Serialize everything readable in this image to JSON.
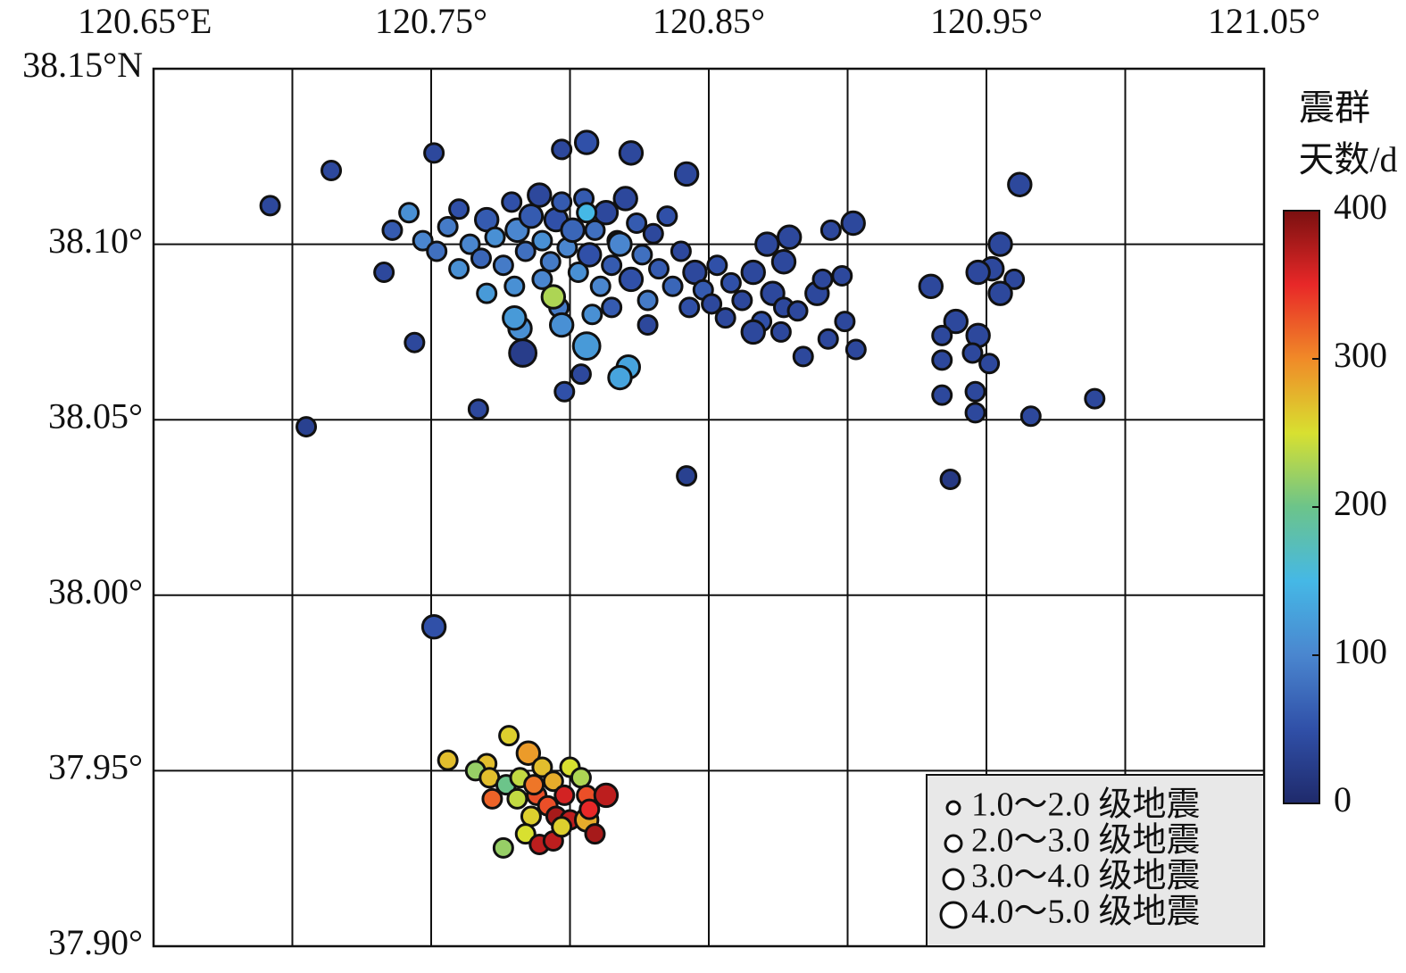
{
  "chart_data": {
    "type": "scatter",
    "xlim": [
      120.65,
      121.05
    ],
    "ylim": [
      37.9,
      38.15
    ],
    "xticks": [
      {
        "value": 120.65,
        "label": "120.65°E"
      },
      {
        "value": 120.75,
        "label": "120.75°"
      },
      {
        "value": 120.85,
        "label": "120.85°"
      },
      {
        "value": 120.95,
        "label": "120.95°"
      },
      {
        "value": 121.05,
        "label": "121.05°"
      }
    ],
    "xminor": [
      120.7,
      120.8,
      120.9,
      121.0
    ],
    "yticks": [
      {
        "value": 38.15,
        "label": "38.15°N"
      },
      {
        "value": 38.1,
        "label": "38.10°"
      },
      {
        "value": 38.05,
        "label": "38.05°"
      },
      {
        "value": 38.0,
        "label": "38.00°"
      },
      {
        "value": 37.95,
        "label": "37.95°"
      },
      {
        "value": 37.9,
        "label": "37.90°"
      }
    ],
    "grid": true,
    "colorbar": {
      "title": [
        "震群",
        "天数/d"
      ],
      "lim": [
        0,
        400
      ],
      "ticks": [
        0,
        100,
        200,
        300,
        400
      ],
      "colormap": [
        "#1f2a6b",
        "#3050a8",
        "#4a86cf",
        "#45b8e6",
        "#6cc48a",
        "#d8e030",
        "#f08a28",
        "#e82828",
        "#7a1010"
      ]
    },
    "legend": [
      "1.0～2.0 级地震",
      "2.0～3.0 级地震",
      "3.0～4.0 级地震",
      "4.0～5.0 级地震"
    ],
    "legend_position": "lower right",
    "points": [
      [
        120.692,
        38.111,
        2.5,
        40
      ],
      [
        120.705,
        38.048,
        2.5,
        30
      ],
      [
        120.714,
        38.121,
        2.5,
        40
      ],
      [
        120.733,
        38.092,
        2.5,
        40
      ],
      [
        120.744,
        38.072,
        2.5,
        40
      ],
      [
        120.751,
        38.126,
        2.5,
        40
      ],
      [
        120.751,
        37.991,
        3.5,
        50
      ],
      [
        120.767,
        38.053,
        2.5,
        40
      ],
      [
        120.797,
        38.127,
        2.5,
        40
      ],
      [
        120.806,
        38.129,
        3.5,
        50
      ],
      [
        120.822,
        38.126,
        3.5,
        40
      ],
      [
        120.842,
        38.12,
        3.5,
        40
      ],
      [
        120.842,
        38.034,
        2.5,
        30
      ],
      [
        120.804,
        38.063,
        2.5,
        40
      ],
      [
        120.798,
        38.058,
        2.5,
        50
      ],
      [
        120.742,
        38.109,
        2.5,
        110
      ],
      [
        120.736,
        38.104,
        2.5,
        60
      ],
      [
        120.747,
        38.101,
        2.5,
        100
      ],
      [
        120.752,
        38.098,
        2.5,
        80
      ],
      [
        120.756,
        38.105,
        2.5,
        90
      ],
      [
        120.76,
        38.11,
        2.5,
        50
      ],
      [
        120.764,
        38.1,
        2.5,
        100
      ],
      [
        120.768,
        38.096,
        2.5,
        70
      ],
      [
        120.77,
        38.107,
        3.5,
        60
      ],
      [
        120.773,
        38.102,
        2.5,
        110
      ],
      [
        120.776,
        38.094,
        2.5,
        90
      ],
      [
        120.779,
        38.112,
        2.5,
        50
      ],
      [
        120.781,
        38.104,
        3.5,
        100
      ],
      [
        120.784,
        38.098,
        2.5,
        80
      ],
      [
        120.786,
        38.108,
        3.5,
        60
      ],
      [
        120.789,
        38.114,
        3.5,
        40
      ],
      [
        120.79,
        38.101,
        2.5,
        110
      ],
      [
        120.793,
        38.095,
        2.5,
        90
      ],
      [
        120.795,
        38.107,
        3.5,
        50
      ],
      [
        120.797,
        38.112,
        2.5,
        60
      ],
      [
        120.799,
        38.099,
        2.5,
        100
      ],
      [
        120.801,
        38.104,
        3.5,
        70
      ],
      [
        120.803,
        38.092,
        2.5,
        110
      ],
      [
        120.805,
        38.113,
        2.5,
        60
      ],
      [
        120.807,
        38.097,
        3.5,
        50
      ],
      [
        120.809,
        38.104,
        2.5,
        80
      ],
      [
        120.811,
        38.088,
        2.5,
        100
      ],
      [
        120.813,
        38.109,
        3.5,
        40
      ],
      [
        120.815,
        38.094,
        2.5,
        60
      ],
      [
        120.817,
        38.101,
        2.5,
        90
      ],
      [
        120.82,
        38.113,
        3.5,
        40
      ],
      [
        120.822,
        38.09,
        3.5,
        50
      ],
      [
        120.824,
        38.106,
        2.5,
        60
      ],
      [
        120.826,
        38.097,
        2.5,
        80
      ],
      [
        120.828,
        38.084,
        2.5,
        90
      ],
      [
        120.83,
        38.103,
        2.5,
        40
      ],
      [
        120.832,
        38.093,
        2.5,
        60
      ],
      [
        120.835,
        38.108,
        2.5,
        50
      ],
      [
        120.837,
        38.088,
        2.5,
        70
      ],
      [
        120.84,
        38.098,
        2.5,
        40
      ],
      [
        120.843,
        38.082,
        2.5,
        50
      ],
      [
        120.845,
        38.092,
        3.5,
        40
      ],
      [
        120.848,
        38.087,
        2.5,
        60
      ],
      [
        120.851,
        38.083,
        2.5,
        40
      ],
      [
        120.853,
        38.094,
        2.5,
        50
      ],
      [
        120.856,
        38.079,
        2.5,
        40
      ],
      [
        120.858,
        38.089,
        2.5,
        50
      ],
      [
        120.862,
        38.084,
        2.5,
        40
      ],
      [
        120.866,
        38.092,
        3.5,
        40
      ],
      [
        120.869,
        38.078,
        2.5,
        50
      ],
      [
        120.873,
        38.086,
        3.5,
        40
      ],
      [
        120.877,
        38.082,
        2.5,
        40
      ],
      [
        120.79,
        38.09,
        2.5,
        100
      ],
      [
        120.78,
        38.088,
        2.5,
        110
      ],
      [
        120.815,
        38.082,
        2.5,
        60
      ],
      [
        120.828,
        38.077,
        2.5,
        40
      ],
      [
        120.808,
        38.08,
        2.5,
        110
      ],
      [
        120.796,
        38.082,
        2.5,
        90
      ],
      [
        120.76,
        38.093,
        2.5,
        110
      ],
      [
        120.77,
        38.086,
        2.5,
        120
      ],
      [
        120.783,
        38.069,
        4.5,
        25
      ],
      [
        120.782,
        38.076,
        3.5,
        110
      ],
      [
        120.78,
        38.079,
        3.5,
        120
      ],
      [
        120.797,
        38.077,
        3.5,
        110
      ],
      [
        120.806,
        38.071,
        4.5,
        120
      ],
      [
        120.821,
        38.065,
        3.5,
        130
      ],
      [
        120.818,
        38.062,
        3.5,
        130
      ],
      [
        120.794,
        38.085,
        3.5,
        230
      ],
      [
        120.806,
        38.109,
        2.5,
        150
      ],
      [
        120.818,
        38.1,
        3.5,
        100
      ],
      [
        120.902,
        38.106,
        3.5,
        40
      ],
      [
        120.894,
        38.104,
        2.5,
        40
      ],
      [
        120.879,
        38.102,
        3.5,
        40
      ],
      [
        120.871,
        38.1,
        3.5,
        40
      ],
      [
        120.877,
        38.095,
        3.5,
        40
      ],
      [
        120.889,
        38.086,
        3.5,
        40
      ],
      [
        120.898,
        38.091,
        2.5,
        40
      ],
      [
        120.891,
        38.09,
        2.5,
        40
      ],
      [
        120.882,
        38.081,
        2.5,
        40
      ],
      [
        120.899,
        38.078,
        2.5,
        40
      ],
      [
        120.903,
        38.07,
        2.5,
        40
      ],
      [
        120.893,
        38.073,
        2.5,
        40
      ],
      [
        120.884,
        38.068,
        2.5,
        40
      ],
      [
        120.866,
        38.075,
        3.5,
        40
      ],
      [
        120.876,
        38.075,
        2.5,
        40
      ],
      [
        120.962,
        38.117,
        3.5,
        40
      ],
      [
        120.955,
        38.1,
        3.5,
        40
      ],
      [
        120.952,
        38.093,
        3.5,
        40
      ],
      [
        120.947,
        38.092,
        3.5,
        40
      ],
      [
        120.96,
        38.09,
        2.5,
        40
      ],
      [
        120.955,
        38.086,
        3.5,
        40
      ],
      [
        120.93,
        38.088,
        3.5,
        40
      ],
      [
        120.939,
        38.078,
        3.5,
        40
      ],
      [
        120.947,
        38.074,
        3.5,
        40
      ],
      [
        120.934,
        38.074,
        2.5,
        40
      ],
      [
        120.945,
        38.069,
        2.5,
        40
      ],
      [
        120.951,
        38.066,
        2.5,
        40
      ],
      [
        120.934,
        38.067,
        2.5,
        40
      ],
      [
        120.946,
        38.058,
        2.5,
        40
      ],
      [
        120.934,
        38.057,
        2.5,
        40
      ],
      [
        120.946,
        38.052,
        2.5,
        40
      ],
      [
        120.966,
        38.051,
        2.5,
        40
      ],
      [
        120.989,
        38.056,
        2.5,
        40
      ],
      [
        120.937,
        38.033,
        2.5,
        20
      ],
      [
        120.778,
        37.96,
        2.5,
        260
      ],
      [
        120.785,
        37.955,
        3.5,
        290
      ],
      [
        120.756,
        37.953,
        2.5,
        270
      ],
      [
        120.77,
        37.952,
        2.5,
        270
      ],
      [
        120.766,
        37.95,
        2.5,
        220
      ],
      [
        120.771,
        37.948,
        2.5,
        270
      ],
      [
        120.777,
        37.946,
        2.5,
        200
      ],
      [
        120.782,
        37.948,
        2.5,
        240
      ],
      [
        120.79,
        37.951,
        2.5,
        270
      ],
      [
        120.8,
        37.951,
        2.5,
        250
      ],
      [
        120.772,
        37.942,
        2.5,
        320
      ],
      [
        120.781,
        37.942,
        2.5,
        240
      ],
      [
        120.788,
        37.943,
        2.5,
        330
      ],
      [
        120.794,
        37.947,
        2.5,
        280
      ],
      [
        120.804,
        37.948,
        2.5,
        230
      ],
      [
        120.806,
        37.943,
        2.5,
        330
      ],
      [
        120.813,
        37.943,
        3.5,
        370
      ],
      [
        120.798,
        37.943,
        2.5,
        360
      ],
      [
        120.792,
        37.94,
        2.5,
        330
      ],
      [
        120.786,
        37.937,
        2.5,
        260
      ],
      [
        120.795,
        37.937,
        2.5,
        380
      ],
      [
        120.8,
        37.936,
        2.5,
        370
      ],
      [
        120.806,
        37.936,
        3.5,
        280
      ],
      [
        120.784,
        37.932,
        2.5,
        250
      ],
      [
        120.789,
        37.929,
        2.5,
        370
      ],
      [
        120.794,
        37.93,
        2.5,
        370
      ],
      [
        120.809,
        37.932,
        2.5,
        380
      ],
      [
        120.776,
        37.928,
        2.5,
        220
      ],
      [
        120.797,
        37.934,
        2.5,
        260
      ],
      [
        120.787,
        37.946,
        2.5,
        310
      ],
      [
        120.807,
        37.939,
        2.5,
        350
      ]
    ]
  }
}
